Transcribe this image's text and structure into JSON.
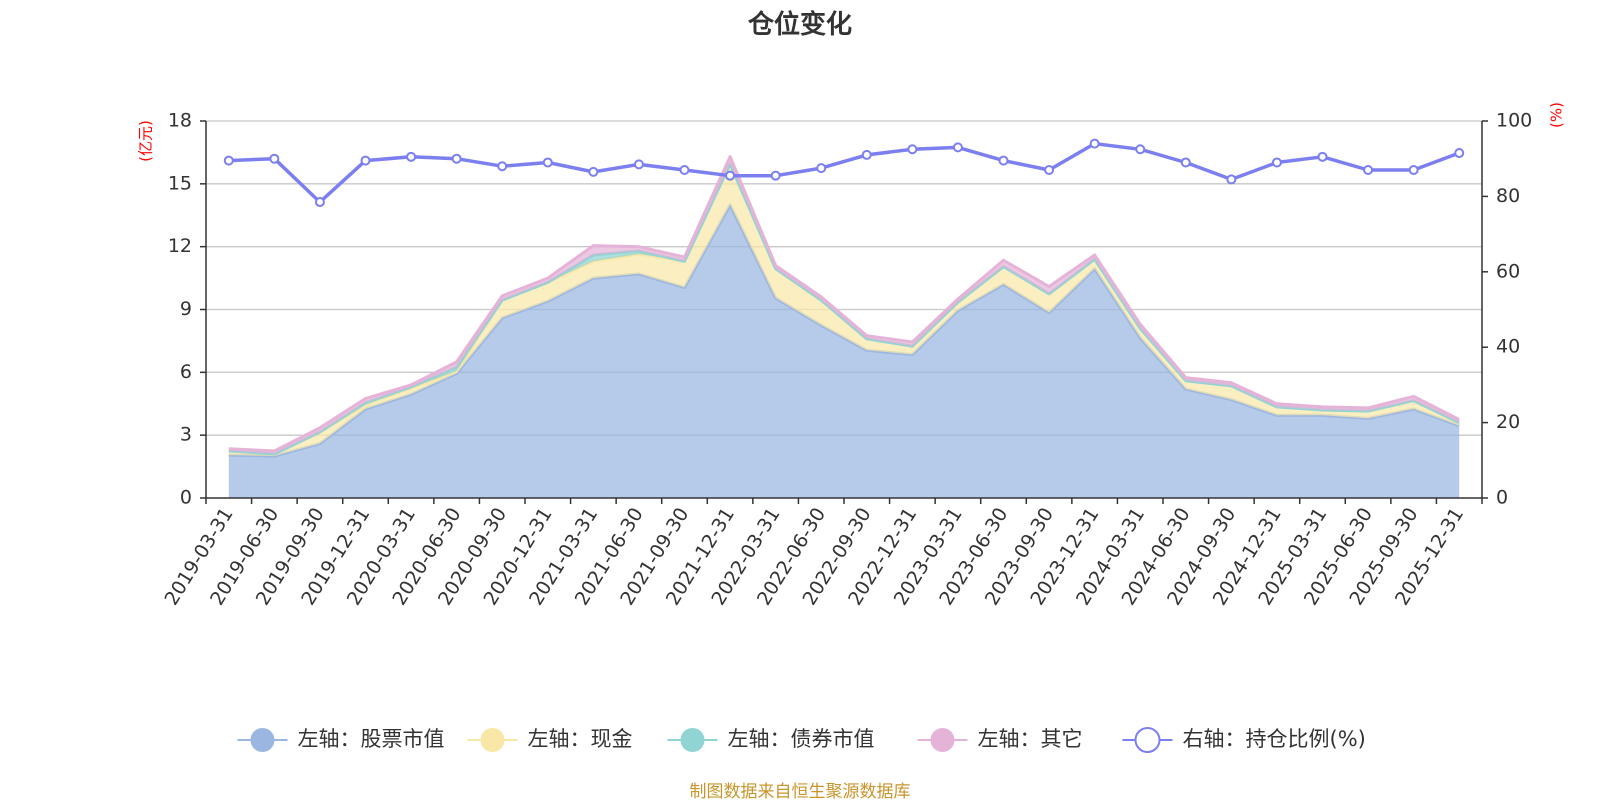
{
  "chart_data": {
    "type": "area",
    "title": "仓位变化",
    "left_unit": "(亿元)",
    "right_unit": "(%)",
    "categories": [
      "2019-03-31",
      "2019-06-30",
      "2019-09-30",
      "2019-12-31",
      "2020-03-31",
      "2020-06-30",
      "2020-09-30",
      "2020-12-31",
      "2021-03-31",
      "2021-06-30",
      "2021-09-30",
      "2021-12-31",
      "2022-03-31",
      "2022-06-30",
      "2022-09-30",
      "2022-12-31",
      "2023-03-31",
      "2023-06-30",
      "2023-09-30",
      "2023-12-31",
      "2024-03-31",
      "2024-06-30",
      "2024-09-30",
      "2024-12-31",
      "2025-03-31",
      "2025-06-30",
      "2025-09-30",
      "2025-12-31"
    ],
    "left_axis": {
      "min": 0,
      "max": 18,
      "ticks": [
        0,
        3,
        6,
        9,
        12,
        15,
        18
      ]
    },
    "right_axis": {
      "min": 0,
      "max": 100,
      "ticks": [
        0,
        20,
        40,
        60,
        80,
        100
      ]
    },
    "grid": true,
    "legend_position": "bottom",
    "series": [
      {
        "name": "左轴：股票市值",
        "axis": "left",
        "stacked": true,
        "color": "#9ab6e1",
        "values": [
          2.05,
          2.0,
          2.6,
          4.25,
          4.95,
          5.95,
          8.6,
          9.4,
          10.5,
          10.7,
          10.05,
          14.0,
          9.55,
          8.25,
          7.05,
          6.85,
          8.95,
          10.2,
          8.85,
          10.95,
          7.65,
          5.2,
          4.7,
          3.95,
          3.95,
          3.8,
          4.25,
          3.45
        ]
      },
      {
        "name": "左轴：现金",
        "axis": "left",
        "stacked": true,
        "color": "#f9e7a7",
        "values": [
          0.2,
          0.1,
          0.55,
          0.2,
          0.3,
          0.1,
          0.85,
          0.9,
          0.8,
          0.95,
          1.25,
          1.95,
          1.4,
          1.2,
          0.55,
          0.4,
          0.4,
          0.85,
          0.9,
          0.45,
          0.45,
          0.4,
          0.65,
          0.4,
          0.25,
          0.35,
          0.4,
          0.15
        ]
      },
      {
        "name": "左轴：债券市值",
        "axis": "left",
        "stacked": true,
        "color": "#90d4d4",
        "values": [
          0,
          0,
          0,
          0.1,
          0.05,
          0.2,
          0,
          0,
          0.3,
          0.15,
          0,
          0,
          0,
          0,
          0,
          0,
          0,
          0,
          0,
          0,
          0,
          0,
          0,
          0,
          0,
          0,
          0,
          0
        ]
      },
      {
        "name": "左轴：其它",
        "axis": "left",
        "stacked": true,
        "color": "#e5b3d8",
        "values": [
          0.1,
          0.15,
          0.2,
          0.2,
          0.1,
          0.25,
          0.2,
          0.2,
          0.45,
          0.2,
          0.2,
          0.35,
          0.15,
          0.15,
          0.15,
          0.2,
          0.15,
          0.3,
          0.35,
          0.2,
          0.2,
          0.15,
          0.15,
          0.15,
          0.15,
          0.15,
          0.2,
          0.15
        ]
      },
      {
        "name": "右轴：持仓比例(%)",
        "axis": "right",
        "type": "line",
        "color": "#7b7ff0",
        "values": [
          89.5,
          90.0,
          78.5,
          89.5,
          90.5,
          90.0,
          88.0,
          89.0,
          86.5,
          88.5,
          87.0,
          85.5,
          85.5,
          87.5,
          91.0,
          92.5,
          93.0,
          89.5,
          87.0,
          94.0,
          92.5,
          89.0,
          84.5,
          89.0,
          90.5,
          87.0,
          87.0,
          91.5
        ]
      }
    ],
    "source_note": "制图数据来自恒生聚源数据库"
  }
}
